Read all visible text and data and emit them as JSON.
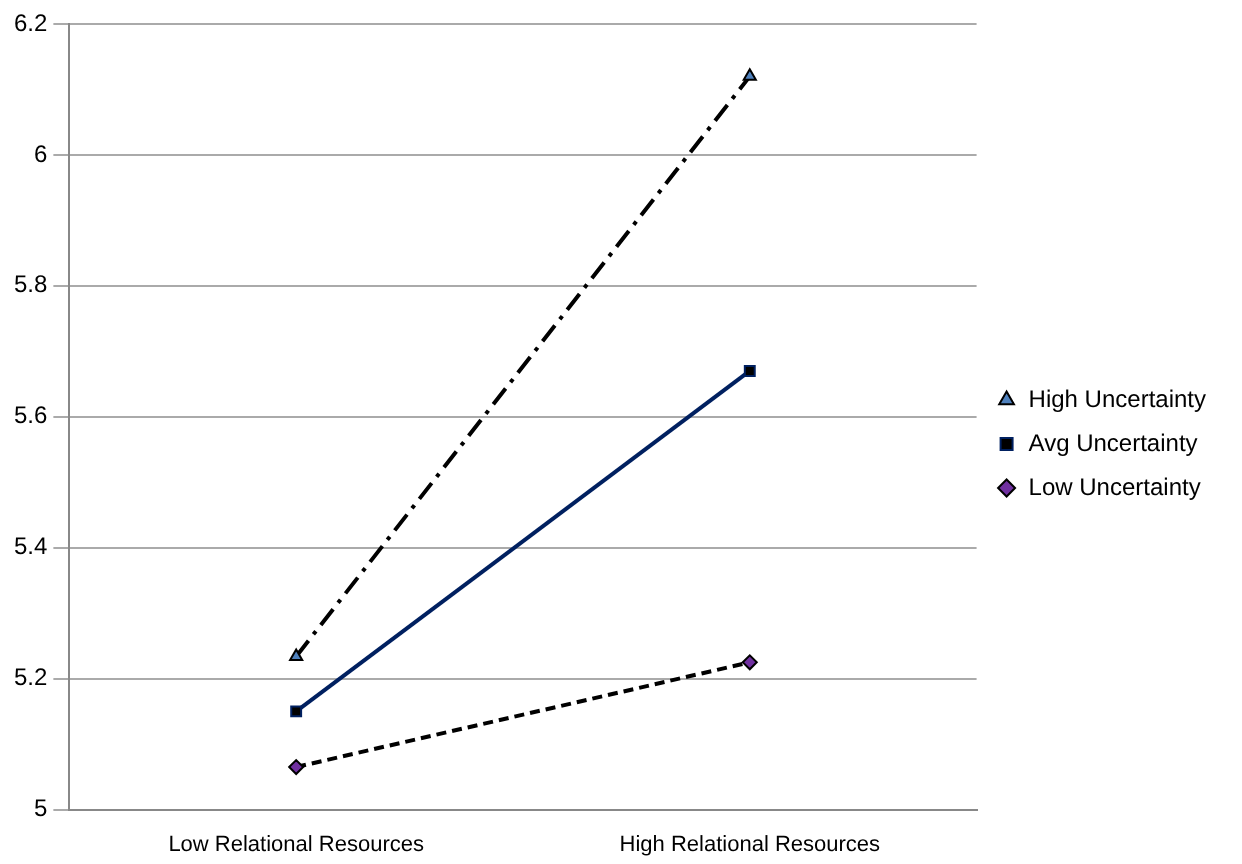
{
  "chart_data": {
    "type": "line",
    "categories": [
      "Low Relational Resources",
      "High Relational Resources"
    ],
    "series": [
      {
        "name": "High Uncertainty",
        "color": "#000000",
        "values": [
          5.234,
          6.12
        ],
        "marker": "triangle",
        "line_style": "dashdot"
      },
      {
        "name": "Avg Uncertainty",
        "color": "#002060",
        "values": [
          5.15,
          5.67
        ],
        "marker": "square",
        "line_style": "solid"
      },
      {
        "name": "Low Uncertainty",
        "color": "#000000",
        "values": [
          5.065,
          5.225
        ],
        "marker": "diamond",
        "line_style": "dashed"
      }
    ],
    "ylim": [
      5,
      6.2
    ],
    "yticks": [
      5,
      5.2,
      5.4,
      5.6,
      5.8,
      6,
      6.2
    ],
    "grid": "y",
    "legend": "right"
  }
}
